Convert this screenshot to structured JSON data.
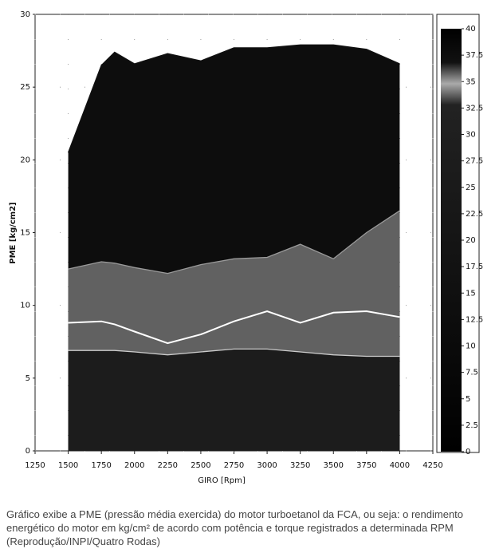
{
  "chart_data": {
    "type": "contour",
    "xlabel": "GIRO [Rpm]",
    "ylabel": "PME [kg/cm2]",
    "x": [
      1500,
      1750,
      1850,
      2000,
      2250,
      2500,
      2750,
      3000,
      3250,
      3500,
      3750,
      4000
    ],
    "series": [
      {
        "color": "#111111",
        "values": [
          20.5,
          26.5,
          27.4,
          26.6,
          27.3,
          26.8,
          27.7,
          27.7,
          27.9,
          27.9,
          27.6,
          26.6
        ]
      },
      {
        "color": "#9a9a9a",
        "values": [
          12.5,
          13,
          12.9,
          12.6,
          12.2,
          12.8,
          13.2,
          13.3,
          14.2,
          13.2,
          15,
          16.5
        ]
      },
      {
        "color": "#ffffff",
        "values": [
          8.8,
          8.9,
          8.7,
          8.2,
          7.4,
          8,
          8.9,
          9.6,
          8.8,
          9.5,
          9.6,
          9.2
        ]
      },
      {
        "color": "#cccccc",
        "values": [
          6.9,
          6.9,
          6.9,
          6.8,
          6.6,
          6.8,
          7,
          7,
          6.8,
          6.6,
          6.5,
          6.5
        ]
      }
    ],
    "xlim": [
      1250,
      4250
    ],
    "xticks": [
      1250,
      1500,
      1750,
      2000,
      2250,
      2500,
      2750,
      3000,
      3250,
      3500,
      3750,
      4000,
      4250
    ],
    "ylim": [
      0,
      30
    ],
    "yticks": [
      0,
      5,
      10,
      15,
      20,
      25,
      30
    ],
    "grid": true,
    "colorbar": {
      "lim": [
        0,
        40
      ],
      "ticks": [
        0,
        2.5,
        5,
        7.5,
        10,
        12.5,
        15,
        17.5,
        20,
        22.5,
        25,
        27.5,
        30,
        32.5,
        35,
        37.5,
        40
      ]
    }
  },
  "caption": "Gráfico exibe a PME (pressão média exercida) do motor turboetanol da FCA, ou seja: o rendimento energético do motor em kg/cm² de acordo com potência e torque registrados a determinada RPM (Reprodução/INPI/Quatro Rodas)"
}
